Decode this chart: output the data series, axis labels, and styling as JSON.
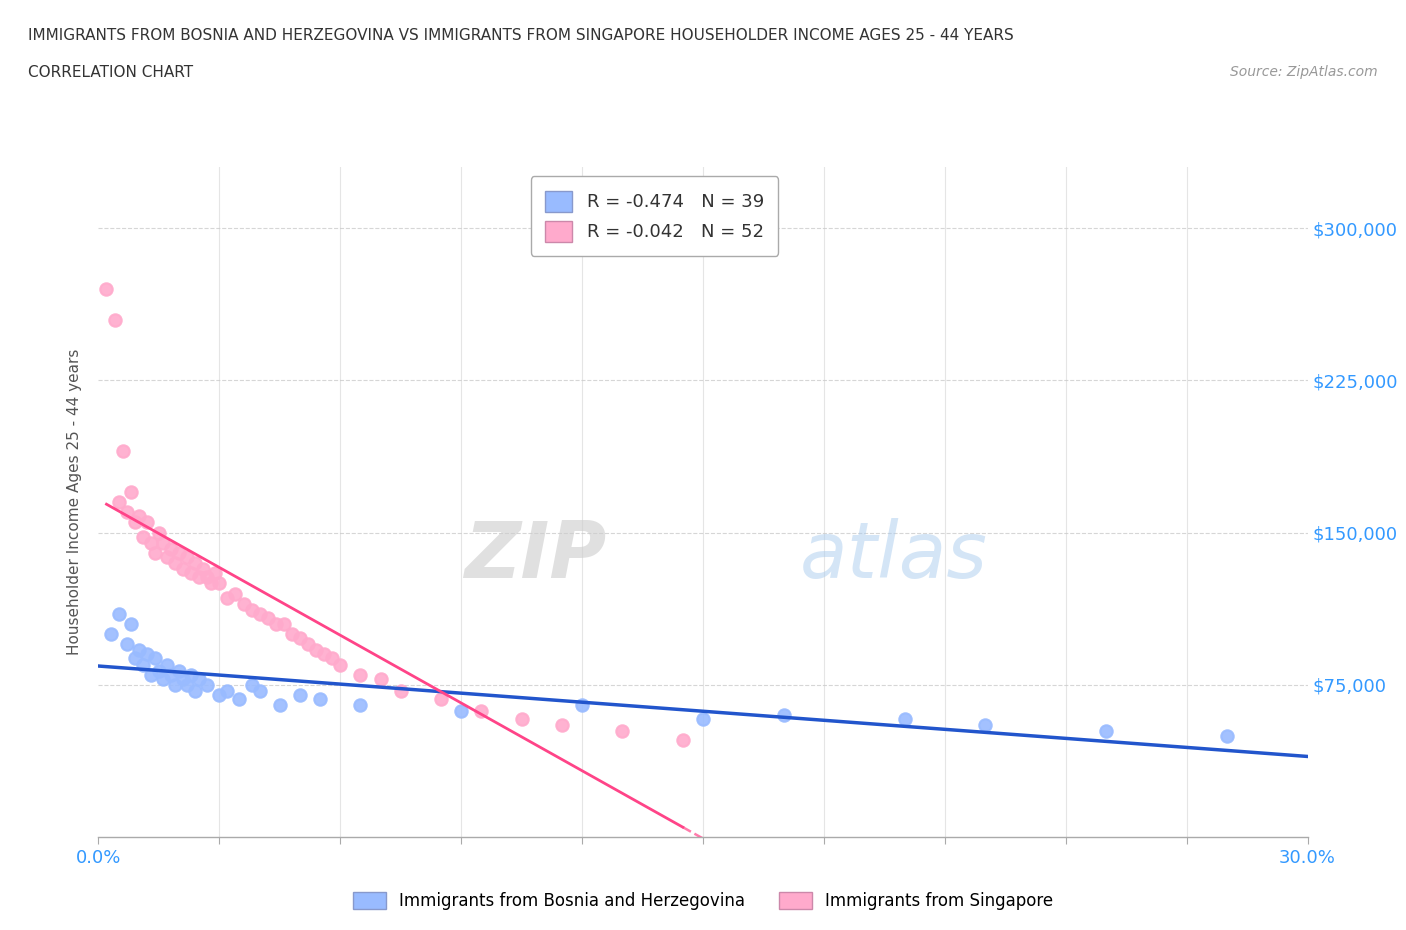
{
  "title_line1": "IMMIGRANTS FROM BOSNIA AND HERZEGOVINA VS IMMIGRANTS FROM SINGAPORE HOUSEHOLDER INCOME AGES 25 - 44 YEARS",
  "title_line2": "CORRELATION CHART",
  "source_text": "Source: ZipAtlas.com",
  "ylabel": "Householder Income Ages 25 - 44 years",
  "xlim": [
    0.0,
    0.3
  ],
  "ylim": [
    0,
    330000
  ],
  "yticks": [
    0,
    75000,
    150000,
    225000,
    300000
  ],
  "ytick_labels": [
    "",
    "$75,000",
    "$150,000",
    "$225,000",
    "$300,000"
  ],
  "background_color": "#ffffff",
  "grid_color": "#cccccc",
  "legend_r1": "R = -0.474   N = 39",
  "legend_r2": "R = -0.042   N = 52",
  "color_bosnia": "#99bbff",
  "color_singapore": "#ffaacc",
  "trendline_bosnia_color": "#2255cc",
  "trendline_singapore_color": "#ff4488",
  "watermark_zip": "ZIP",
  "watermark_atlas": "atlas",
  "bosnia_x": [
    0.003,
    0.005,
    0.007,
    0.008,
    0.009,
    0.01,
    0.011,
    0.012,
    0.013,
    0.014,
    0.015,
    0.016,
    0.017,
    0.018,
    0.019,
    0.02,
    0.021,
    0.022,
    0.023,
    0.024,
    0.025,
    0.027,
    0.03,
    0.032,
    0.035,
    0.038,
    0.04,
    0.045,
    0.05,
    0.055,
    0.065,
    0.09,
    0.12,
    0.15,
    0.17,
    0.2,
    0.22,
    0.25,
    0.28
  ],
  "bosnia_y": [
    100000,
    110000,
    95000,
    105000,
    88000,
    92000,
    85000,
    90000,
    80000,
    88000,
    82000,
    78000,
    85000,
    80000,
    75000,
    82000,
    78000,
    75000,
    80000,
    72000,
    78000,
    75000,
    70000,
    72000,
    68000,
    75000,
    72000,
    65000,
    70000,
    68000,
    65000,
    62000,
    65000,
    58000,
    60000,
    58000,
    55000,
    52000,
    50000
  ],
  "singapore_x": [
    0.002,
    0.004,
    0.005,
    0.006,
    0.007,
    0.008,
    0.009,
    0.01,
    0.011,
    0.012,
    0.013,
    0.014,
    0.015,
    0.016,
    0.017,
    0.018,
    0.019,
    0.02,
    0.021,
    0.022,
    0.023,
    0.024,
    0.025,
    0.026,
    0.027,
    0.028,
    0.029,
    0.03,
    0.032,
    0.034,
    0.036,
    0.038,
    0.04,
    0.042,
    0.044,
    0.046,
    0.048,
    0.05,
    0.052,
    0.054,
    0.056,
    0.058,
    0.06,
    0.065,
    0.07,
    0.075,
    0.085,
    0.095,
    0.105,
    0.115,
    0.13,
    0.145
  ],
  "singapore_y": [
    270000,
    255000,
    165000,
    190000,
    160000,
    170000,
    155000,
    158000,
    148000,
    155000,
    145000,
    140000,
    150000,
    145000,
    138000,
    142000,
    135000,
    140000,
    132000,
    138000,
    130000,
    135000,
    128000,
    132000,
    128000,
    125000,
    130000,
    125000,
    118000,
    120000,
    115000,
    112000,
    110000,
    108000,
    105000,
    105000,
    100000,
    98000,
    95000,
    92000,
    90000,
    88000,
    85000,
    80000,
    78000,
    72000,
    68000,
    62000,
    58000,
    55000,
    52000,
    48000
  ]
}
